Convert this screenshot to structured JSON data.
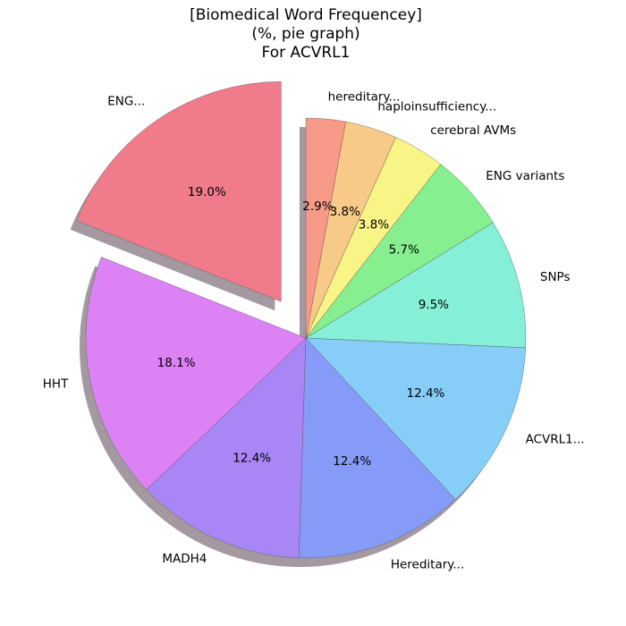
{
  "chart_data": {
    "type": "pie",
    "title_lines": [
      "[Biomedical Word Frequencey]",
      "(%, pie graph)",
      "For ACVRL1"
    ],
    "start_angle_deg": 90,
    "direction": "counterclockwise",
    "shadow": true,
    "slices": [
      {
        "label": "ENG...",
        "value": 19.0,
        "pct_text": "19.0%",
        "color": "#f07b8a",
        "exploded": true
      },
      {
        "label": "HHT",
        "value": 18.1,
        "pct_text": "18.1%",
        "color": "#dd82f4"
      },
      {
        "label": "MADH4",
        "value": 12.4,
        "pct_text": "12.4%",
        "color": "#a986f5"
      },
      {
        "label": "Hereditary...",
        "value": 12.4,
        "pct_text": "12.4%",
        "color": "#869bf7"
      },
      {
        "label": "ACVRL1...",
        "value": 12.4,
        "pct_text": "12.4%",
        "color": "#86cef7"
      },
      {
        "label": "SNPs",
        "value": 9.5,
        "pct_text": "9.5%",
        "color": "#86efd8"
      },
      {
        "label": "ENG variants",
        "value": 5.7,
        "pct_text": "5.7%",
        "color": "#86ef90"
      },
      {
        "label": "cerebral AVMs",
        "value": 3.8,
        "pct_text": "3.8%",
        "color": "#f8f486"
      },
      {
        "label": "haploinsufficiency...",
        "value": 3.8,
        "pct_text": "3.8%",
        "color": "#f8ca88"
      },
      {
        "label": "hereditary...",
        "value": 2.9,
        "pct_text": "2.9%",
        "color": "#f89a88"
      }
    ]
  }
}
